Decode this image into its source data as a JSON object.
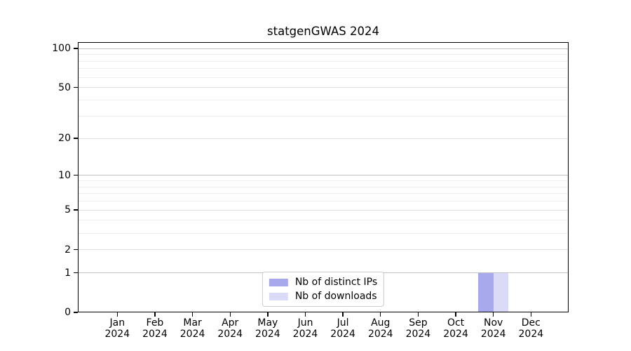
{
  "chart_data": {
    "type": "bar",
    "title": "statgenGWAS 2024",
    "categories": [
      "Jan",
      "Feb",
      "Mar",
      "Apr",
      "May",
      "Jun",
      "Jul",
      "Aug",
      "Sep",
      "Oct",
      "Nov",
      "Dec"
    ],
    "category_year": "2024",
    "series": [
      {
        "name": "Nb of distinct IPs",
        "color": "#a8a8ec",
        "values": [
          0,
          0,
          0,
          0,
          0,
          0,
          0,
          0,
          0,
          0,
          1,
          0
        ]
      },
      {
        "name": "Nb of downloads",
        "color": "#dbdbf8",
        "values": [
          0,
          0,
          0,
          0,
          0,
          0,
          0,
          0,
          0,
          0,
          1,
          0
        ]
      }
    ],
    "yscale": "log1p",
    "ylim": [
      0,
      112
    ],
    "yticks_major": [
      0,
      1,
      2,
      5,
      10,
      20,
      50,
      100
    ],
    "yticks_minor": [
      3,
      4,
      6,
      7,
      8,
      9,
      30,
      40,
      60,
      70,
      80,
      90
    ],
    "emphasized_gridlines": [
      1,
      10,
      100
    ],
    "grid": true,
    "legend_position": "lower center",
    "colors": {
      "background": "#ffffff",
      "spine": "#000000",
      "text": "#000000",
      "grid_strong": "#c2c2c2",
      "grid_major": "#e0e0e0",
      "grid_minor": "#efefef",
      "legend_border": "#cccccc"
    }
  }
}
